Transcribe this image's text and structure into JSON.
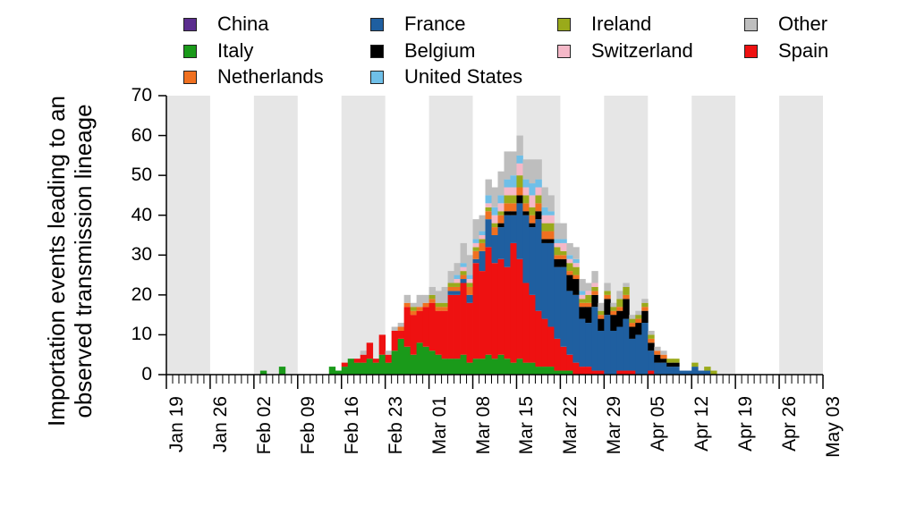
{
  "chart_data": {
    "type": "bar",
    "stacked": true,
    "title": "",
    "xlabel": "",
    "ylabel_lines": [
      "Importation events leading to an",
      "observed transmission lineage"
    ],
    "ylim": [
      0,
      70
    ],
    "yticks": [
      0,
      10,
      20,
      30,
      40,
      50,
      60,
      70
    ],
    "x_start": "Jan 19",
    "x_end": "May 03",
    "xtick_labels": [
      "Jan 19",
      "Jan 26",
      "Feb 02",
      "Feb 09",
      "Feb 16",
      "Feb 23",
      "Mar 01",
      "Mar 08",
      "Mar 15",
      "Mar 22",
      "Mar 29",
      "Apr 05",
      "Apr 12",
      "Apr 19",
      "Apr 26",
      "May 03"
    ],
    "shaded_weeks": [
      "Jan 19",
      "Feb 02",
      "Feb 16",
      "Mar 01",
      "Mar 15",
      "Mar 29",
      "Apr 12",
      "Apr 26"
    ],
    "grid": false,
    "legend_position": "top",
    "legend": [
      {
        "name": "China",
        "color": "#5b2d8e"
      },
      {
        "name": "France",
        "color": "#1f5fa0"
      },
      {
        "name": "Ireland",
        "color": "#9aaa1a"
      },
      {
        "name": "Other",
        "color": "#bebebe"
      },
      {
        "name": "Italy",
        "color": "#1a9a1a"
      },
      {
        "name": "Belgium",
        "color": "#000000"
      },
      {
        "name": "Switzerland",
        "color": "#f5b8c8"
      },
      {
        "name": "Spain",
        "color": "#ee1111"
      },
      {
        "name": "Netherlands",
        "color": "#f07020"
      },
      {
        "name": "United States",
        "color": "#6fbfe8"
      }
    ],
    "x": [
      "Jan 19",
      "Jan 20",
      "Jan 21",
      "Jan 22",
      "Jan 23",
      "Jan 24",
      "Jan 25",
      "Jan 26",
      "Jan 27",
      "Jan 28",
      "Jan 29",
      "Jan 30",
      "Jan 31",
      "Feb 01",
      "Feb 02",
      "Feb 03",
      "Feb 04",
      "Feb 05",
      "Feb 06",
      "Feb 07",
      "Feb 08",
      "Feb 09",
      "Feb 10",
      "Feb 11",
      "Feb 12",
      "Feb 13",
      "Feb 14",
      "Feb 15",
      "Feb 16",
      "Feb 17",
      "Feb 18",
      "Feb 19",
      "Feb 20",
      "Feb 21",
      "Feb 22",
      "Feb 23",
      "Feb 24",
      "Feb 25",
      "Feb 26",
      "Feb 27",
      "Feb 28",
      "Feb 29",
      "Mar 01",
      "Mar 02",
      "Mar 03",
      "Mar 04",
      "Mar 05",
      "Mar 06",
      "Mar 07",
      "Mar 08",
      "Mar 09",
      "Mar 10",
      "Mar 11",
      "Mar 12",
      "Mar 13",
      "Mar 14",
      "Mar 15",
      "Mar 16",
      "Mar 17",
      "Mar 18",
      "Mar 19",
      "Mar 20",
      "Mar 21",
      "Mar 22",
      "Mar 23",
      "Mar 24",
      "Mar 25",
      "Mar 26",
      "Mar 27",
      "Mar 28",
      "Mar 29",
      "Mar 30",
      "Mar 31",
      "Apr 01",
      "Apr 02",
      "Apr 03",
      "Apr 04",
      "Apr 05",
      "Apr 06",
      "Apr 07",
      "Apr 08",
      "Apr 09",
      "Apr 10",
      "Apr 11",
      "Apr 12",
      "Apr 13",
      "Apr 14",
      "Apr 15",
      "Apr 16",
      "Apr 17",
      "Apr 18",
      "Apr 19",
      "Apr 20",
      "Apr 21",
      "Apr 22",
      "Apr 23",
      "Apr 24",
      "Apr 25",
      "Apr 26",
      "Apr 27",
      "Apr 28",
      "Apr 29",
      "Apr 30",
      "May 01",
      "May 02"
    ],
    "series": [
      {
        "name": "China",
        "color": "#5b2d8e",
        "values": [
          0,
          0,
          0,
          0,
          0,
          0,
          0,
          0,
          0,
          0,
          0,
          0,
          0,
          0,
          0,
          0,
          0,
          0,
          0,
          0,
          0,
          0,
          0,
          0,
          0,
          0,
          0,
          0,
          0,
          0,
          0,
          0,
          0,
          0,
          0,
          0,
          0,
          0,
          0,
          0,
          0,
          0,
          0,
          0,
          0,
          0,
          0,
          0,
          0,
          0,
          0,
          0,
          0,
          0,
          0,
          0,
          0,
          0,
          0,
          0,
          0,
          0,
          0,
          0,
          0,
          0,
          0,
          0,
          0,
          0,
          0,
          0,
          0,
          0,
          0,
          0,
          0,
          0,
          0,
          0,
          0,
          0,
          0,
          0,
          0,
          0,
          0,
          0,
          0,
          0,
          0,
          0,
          0,
          0,
          0,
          0,
          0,
          0,
          0,
          0,
          0,
          0,
          0,
          0,
          0
        ]
      },
      {
        "name": "Italy",
        "color": "#1a9a1a",
        "values": [
          0,
          0,
          0,
          0,
          0,
          0,
          0,
          0,
          0,
          0,
          0,
          0,
          0,
          0,
          0,
          1,
          0,
          0,
          2,
          0,
          0,
          0,
          0,
          0,
          0,
          0,
          2,
          1,
          2,
          4,
          3,
          3,
          4,
          3,
          5,
          3,
          6,
          9,
          7,
          5,
          8,
          7,
          6,
          5,
          4,
          4,
          4,
          5,
          3,
          4,
          4,
          5,
          4,
          5,
          4,
          3,
          4,
          3,
          3,
          2,
          2,
          2,
          1,
          1,
          1,
          0,
          0,
          0,
          0,
          0,
          0,
          0,
          0,
          0,
          0,
          0,
          0,
          0,
          0,
          0,
          0,
          0,
          0,
          0,
          0,
          0,
          0,
          0,
          0,
          0,
          0,
          0,
          0,
          0,
          0,
          0,
          0,
          0,
          0,
          0,
          0,
          0,
          0,
          0,
          0
        ]
      },
      {
        "name": "Spain",
        "color": "#ee1111",
        "values": [
          0,
          0,
          0,
          0,
          0,
          0,
          0,
          0,
          0,
          0,
          0,
          0,
          0,
          0,
          0,
          0,
          0,
          0,
          0,
          0,
          0,
          0,
          0,
          0,
          0,
          0,
          0,
          0,
          1,
          0,
          1,
          2,
          4,
          1,
          5,
          2,
          5,
          2,
          10,
          10,
          8,
          10,
          12,
          11,
          12,
          16,
          16,
          18,
          15,
          24,
          22,
          27,
          24,
          24,
          23,
          30,
          25,
          20,
          17,
          14,
          12,
          10,
          8,
          6,
          4,
          3,
          2,
          2,
          1,
          1,
          0,
          0,
          1,
          1,
          1,
          0,
          0,
          1,
          0,
          0,
          0,
          0,
          0,
          0,
          0,
          0,
          0,
          0,
          0,
          0,
          0,
          0,
          0,
          0,
          0,
          0,
          0,
          0,
          0,
          0,
          0,
          0,
          0,
          0,
          0
        ]
      },
      {
        "name": "France",
        "color": "#1f5fa0",
        "values": [
          0,
          0,
          0,
          0,
          0,
          0,
          0,
          0,
          0,
          0,
          0,
          0,
          0,
          0,
          0,
          0,
          0,
          0,
          0,
          0,
          0,
          0,
          0,
          0,
          0,
          0,
          0,
          0,
          0,
          0,
          0,
          0,
          0,
          0,
          0,
          0,
          0,
          0,
          0,
          0,
          0,
          0,
          0,
          0,
          0,
          1,
          1,
          1,
          2,
          1,
          5,
          7,
          7,
          8,
          13,
          7,
          14,
          17,
          17,
          23,
          19,
          21,
          18,
          20,
          16,
          17,
          12,
          11,
          16,
          10,
          15,
          11,
          11,
          13,
          8,
          10,
          13,
          5,
          3,
          3,
          2,
          2,
          1,
          1,
          2,
          1,
          1,
          0,
          0,
          0,
          0,
          0,
          0,
          0,
          0,
          0,
          0,
          0,
          0,
          0,
          0,
          0,
          0,
          0,
          0
        ]
      },
      {
        "name": "Belgium",
        "color": "#000000",
        "values": [
          0,
          0,
          0,
          0,
          0,
          0,
          0,
          0,
          0,
          0,
          0,
          0,
          0,
          0,
          0,
          0,
          0,
          0,
          0,
          0,
          0,
          0,
          0,
          0,
          0,
          0,
          0,
          0,
          0,
          0,
          0,
          0,
          0,
          0,
          0,
          0,
          0,
          0,
          0,
          0,
          0,
          0,
          0,
          0,
          0,
          0,
          0,
          0,
          0,
          0,
          0,
          0,
          0,
          1,
          1,
          1,
          2,
          1,
          1,
          2,
          1,
          1,
          2,
          2,
          4,
          4,
          3,
          4,
          3,
          3,
          4,
          4,
          4,
          5,
          3,
          3,
          3,
          2,
          2,
          1,
          1,
          1,
          0,
          0,
          0,
          0,
          0,
          0,
          0,
          0,
          0,
          0,
          0,
          0,
          0,
          0,
          0,
          0,
          0,
          0,
          0,
          0,
          0,
          0,
          0
        ]
      },
      {
        "name": "Netherlands",
        "color": "#f07020",
        "values": [
          0,
          0,
          0,
          0,
          0,
          0,
          0,
          0,
          0,
          0,
          0,
          0,
          0,
          0,
          0,
          0,
          0,
          0,
          0,
          0,
          0,
          0,
          0,
          0,
          0,
          0,
          0,
          0,
          0,
          0,
          0,
          0,
          0,
          0,
          0,
          0,
          0,
          1,
          1,
          1,
          1,
          1,
          1,
          1,
          1,
          1,
          1,
          1,
          2,
          2,
          2,
          2,
          2,
          2,
          2,
          2,
          2,
          2,
          2,
          2,
          2,
          2,
          1,
          1,
          1,
          1,
          1,
          1,
          1,
          1,
          1,
          1,
          1,
          1,
          1,
          1,
          1,
          1,
          1,
          1,
          0,
          0,
          0,
          0,
          0,
          0,
          0,
          0,
          0,
          0,
          0,
          0,
          0,
          0,
          0,
          0,
          0,
          0,
          0,
          0,
          0,
          0,
          0,
          0,
          0
        ]
      },
      {
        "name": "Ireland",
        "color": "#9aaa1a",
        "values": [
          0,
          0,
          0,
          0,
          0,
          0,
          0,
          0,
          0,
          0,
          0,
          0,
          0,
          0,
          0,
          0,
          0,
          0,
          0,
          0,
          0,
          0,
          0,
          0,
          0,
          0,
          0,
          0,
          0,
          0,
          0,
          0,
          0,
          0,
          0,
          0,
          0,
          0,
          0,
          1,
          0,
          0,
          1,
          1,
          1,
          1,
          1,
          1,
          1,
          1,
          1,
          1,
          1,
          1,
          2,
          2,
          3,
          2,
          2,
          2,
          2,
          2,
          2,
          1,
          2,
          2,
          1,
          2,
          1,
          1,
          1,
          1,
          2,
          2,
          1,
          1,
          1,
          1,
          0,
          0,
          1,
          1,
          0,
          0,
          1,
          0,
          1,
          1,
          0,
          0,
          0,
          0,
          0,
          0,
          0,
          0,
          0,
          0,
          0,
          0,
          0,
          0,
          0,
          0,
          0
        ]
      },
      {
        "name": "Switzerland",
        "color": "#f5b8c8",
        "values": [
          0,
          0,
          0,
          0,
          0,
          0,
          0,
          0,
          0,
          0,
          0,
          0,
          0,
          0,
          0,
          0,
          0,
          0,
          0,
          0,
          0,
          0,
          0,
          0,
          0,
          0,
          0,
          0,
          0,
          0,
          0,
          0,
          0,
          0,
          0,
          0,
          0,
          0,
          0,
          0,
          0,
          0,
          0,
          0,
          0,
          0,
          1,
          1,
          1,
          1,
          1,
          1,
          2,
          2,
          2,
          2,
          3,
          2,
          3,
          2,
          2,
          2,
          1,
          2,
          1,
          1,
          1,
          1,
          1,
          0,
          0,
          0,
          0,
          0,
          0,
          0,
          0,
          0,
          0,
          0,
          0,
          0,
          0,
          0,
          0,
          0,
          0,
          0,
          0,
          0,
          0,
          0,
          0,
          0,
          0,
          0,
          0,
          0,
          0,
          0,
          0,
          0,
          0,
          0,
          0
        ]
      },
      {
        "name": "United States",
        "color": "#6fbfe8",
        "values": [
          0,
          0,
          0,
          0,
          0,
          0,
          0,
          0,
          0,
          0,
          0,
          0,
          0,
          0,
          0,
          0,
          0,
          0,
          0,
          0,
          0,
          0,
          0,
          0,
          0,
          0,
          0,
          0,
          0,
          0,
          0,
          0,
          0,
          0,
          0,
          0,
          0,
          0,
          0,
          0,
          0,
          0,
          0,
          0,
          0,
          0,
          1,
          1,
          1,
          1,
          1,
          2,
          2,
          2,
          2,
          3,
          2,
          2,
          3,
          2,
          2,
          1,
          1,
          1,
          1,
          1,
          1,
          0,
          0,
          0,
          0,
          0,
          0,
          0,
          0,
          0,
          0,
          0,
          0,
          0,
          0,
          0,
          0,
          0,
          0,
          0,
          0,
          0,
          0,
          0,
          0,
          0,
          0,
          0,
          0,
          0,
          0,
          0,
          0,
          0,
          0,
          0,
          0,
          0,
          0
        ]
      },
      {
        "name": "Other",
        "color": "#bebebe",
        "values": [
          0,
          0,
          0,
          0,
          0,
          0,
          0,
          0,
          0,
          0,
          0,
          0,
          0,
          0,
          0,
          0,
          0,
          0,
          0,
          0,
          0,
          0,
          0,
          0,
          0,
          0,
          0,
          0,
          0,
          0,
          0,
          1,
          0,
          0,
          0,
          1,
          1,
          1,
          2,
          1,
          3,
          2,
          2,
          3,
          4,
          3,
          3,
          5,
          5,
          5,
          4,
          4,
          5,
          6,
          7,
          6,
          5,
          5,
          6,
          5,
          5,
          4,
          4,
          4,
          3,
          3,
          3,
          2,
          3,
          2,
          2,
          1,
          2,
          1,
          1,
          1,
          1,
          1,
          1,
          1,
          0,
          0,
          0,
          0,
          0,
          0,
          0,
          0,
          0,
          0,
          0,
          0,
          0,
          0,
          0,
          0,
          0,
          0,
          0,
          0,
          0,
          0,
          0,
          0,
          0
        ]
      }
    ]
  }
}
